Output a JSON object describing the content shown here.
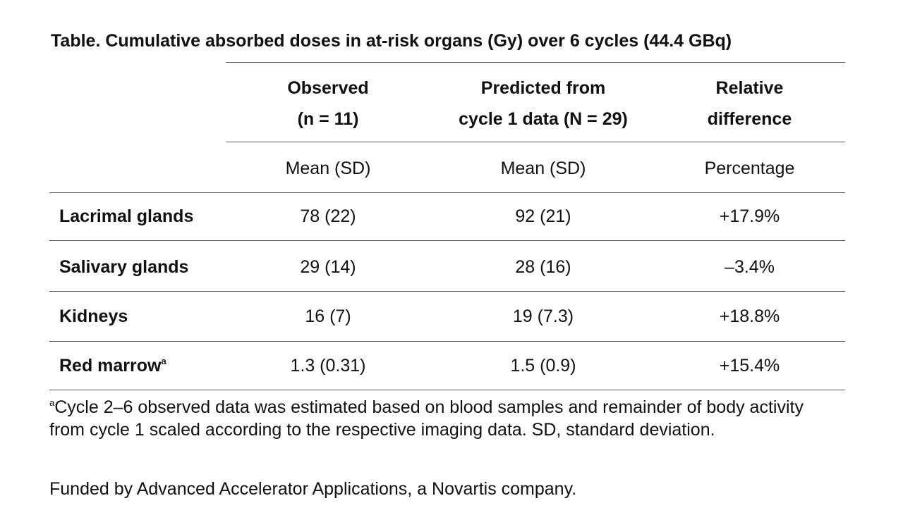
{
  "title": "Table. Cumulative absorbed doses in at-risk organs (Gy) over 6 cycles (44.4 GBq)",
  "columns": [
    {
      "line1": "Observed",
      "line2": "(n = 11)",
      "sub": "Mean (SD)"
    },
    {
      "line1": "Predicted from",
      "line2": "cycle 1 data (N = 29)",
      "sub": "Mean (SD)"
    },
    {
      "line1": "Relative",
      "line2": "difference",
      "sub": "Percentage"
    }
  ],
  "rows": [
    {
      "label": "Lacrimal glands",
      "sup": "",
      "observed": "78 (22)",
      "predicted": "92 (21)",
      "difference": "+17.9%"
    },
    {
      "label": "Salivary glands",
      "sup": "",
      "observed": "29 (14)",
      "predicted": "28 (16)",
      "difference": "–3.4%"
    },
    {
      "label": "Kidneys",
      "sup": "",
      "observed": "16 (7)",
      "predicted": "19 (7.3)",
      "difference": "+18.8%"
    },
    {
      "label": "Red marrow",
      "sup": "a",
      "observed": "1.3 (0.31)",
      "predicted": "1.5 (0.9)",
      "difference": "+15.4%"
    }
  ],
  "footnote": {
    "marker": "a",
    "text": "Cycle 2–6 observed data was estimated based on blood samples and remainder of body activity from cycle 1 scaled according to the respective imaging data. SD, standard deviation."
  },
  "funding": "Funded by Advanced Accelerator Applications, a Novartis company."
}
